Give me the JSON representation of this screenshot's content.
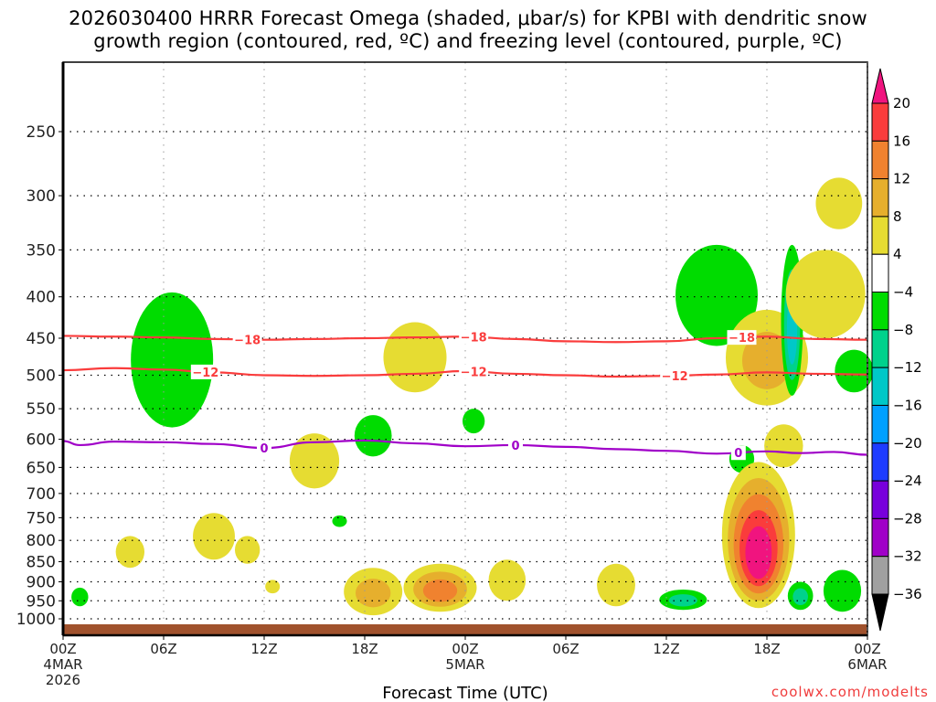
{
  "title": {
    "line1": "2026030400 HRRR Forecast Omega (shaded, μbar/s) for KPBI with dendritic snow",
    "line2": "growth region (contoured, red, ºC) and freezing level (contoured, purple, ºC)"
  },
  "credit": "coolwx.com/modelts",
  "chart_data": {
    "type": "heatmap",
    "title": "2026030400 HRRR Forecast Omega (shaded, μbar/s) for KPBI with dendritic snow growth region (contoured, red, ºC) and freezing level (contoured, purple, ºC)",
    "xlabel": "Forecast Time (UTC)",
    "ylabel": "",
    "x_unit": "forecast hour",
    "xlim": [
      0,
      48
    ],
    "ylim": [
      1000,
      200
    ],
    "y_scale": "log-pressure (hPa)",
    "grid": true,
    "x_ticks": [
      {
        "hour": 0,
        "label": [
          "00Z",
          "4MAR",
          "2026"
        ]
      },
      {
        "hour": 6,
        "label": [
          "06Z"
        ]
      },
      {
        "hour": 12,
        "label": [
          "12Z"
        ]
      },
      {
        "hour": 18,
        "label": [
          "18Z"
        ]
      },
      {
        "hour": 24,
        "label": [
          "00Z",
          "5MAR"
        ]
      },
      {
        "hour": 30,
        "label": [
          "06Z"
        ]
      },
      {
        "hour": 36,
        "label": [
          "12Z"
        ]
      },
      {
        "hour": 42,
        "label": [
          "18Z"
        ]
      },
      {
        "hour": 48,
        "label": [
          "00Z",
          "6MAR"
        ]
      }
    ],
    "y_ticks": [
      250,
      300,
      350,
      400,
      450,
      500,
      550,
      600,
      650,
      700,
      750,
      800,
      850,
      900,
      950,
      1000
    ],
    "colorbar": {
      "label": "Omega (μbar/s)",
      "ticks": [
        20,
        16,
        12,
        8,
        4,
        -4,
        -8,
        -12,
        -16,
        -20,
        -24,
        -28,
        -32,
        -36
      ],
      "bins": [
        {
          "range": ">20",
          "color": "#f0147f"
        },
        {
          "range": "16-20",
          "color": "#fa3c3c"
        },
        {
          "range": "12-16",
          "color": "#f0822f"
        },
        {
          "range": "8-12",
          "color": "#e6af2d"
        },
        {
          "range": "4-8",
          "color": "#e6dc32"
        },
        {
          "range": "-4-4",
          "color": "#ffffff"
        },
        {
          "range": "-8--4",
          "color": "#00dc00"
        },
        {
          "range": "-12--8",
          "color": "#00d28c"
        },
        {
          "range": "-16--12",
          "color": "#00c8c8"
        },
        {
          "range": "-20--16",
          "color": "#00a0ff"
        },
        {
          "range": "-24--20",
          "color": "#1e3cff"
        },
        {
          "range": "-28--24",
          "color": "#7800dc"
        },
        {
          "range": "-32--28",
          "color": "#a000c8"
        },
        {
          "range": "-36--32",
          "color": "#a0a0a0"
        },
        {
          "range": "<-36",
          "color": "#000000"
        }
      ]
    },
    "contours": [
      {
        "name": "-18C isotherm",
        "color": "#fa3c3c",
        "label": "-18",
        "hours": [
          0,
          3,
          6,
          9,
          12,
          15,
          18,
          21,
          24,
          27,
          30,
          33,
          36,
          39,
          42,
          45,
          48
        ],
        "pressure": [
          447,
          448,
          449,
          451,
          452,
          451,
          450,
          449,
          448,
          451,
          454,
          455,
          454,
          450,
          448,
          451,
          452
        ],
        "label_hours": [
          11,
          24.5,
          40.5
        ]
      },
      {
        "name": "-12C isotherm",
        "color": "#fa3c3c",
        "label": "-12",
        "hours": [
          0,
          3,
          6,
          9,
          12,
          15,
          18,
          21,
          24,
          27,
          30,
          33,
          36,
          39,
          42,
          45,
          48
        ],
        "pressure": [
          493,
          490,
          492,
          496,
          500,
          501,
          500,
          498,
          494,
          498,
          500,
          502,
          501,
          499,
          496,
          498,
          499
        ],
        "label_hours": [
          8.5,
          24.5,
          36.5
        ]
      },
      {
        "name": "0C freezing level",
        "color": "#a000c8",
        "label": "0",
        "hours": [
          0,
          1,
          3,
          6,
          9,
          12,
          15,
          18,
          21,
          24,
          27,
          30,
          33,
          36,
          39,
          42,
          44,
          46,
          48
        ],
        "pressure": [
          603,
          610,
          604,
          605,
          608,
          615,
          605,
          602,
          607,
          612,
          610,
          613,
          617,
          620,
          625,
          621,
          624,
          622,
          627
        ],
        "label_hours": [
          12,
          27,
          40.3
        ]
      }
    ],
    "shaded_features": [
      {
        "hour": 1,
        "p_top": 915,
        "p_bottom": 965,
        "omega": -6,
        "desc": "green cell near surface"
      },
      {
        "hour": 4,
        "p_top": 790,
        "p_bottom": 865,
        "omega": 6
      },
      {
        "hour": 6.5,
        "p_top": 395,
        "p_bottom": 580,
        "omega": -6,
        "desc": "tall narrow green column"
      },
      {
        "hour": 9,
        "p_top": 740,
        "p_bottom": 845,
        "omega": 6
      },
      {
        "hour": 11,
        "p_top": 790,
        "p_bottom": 855,
        "omega": 5
      },
      {
        "hour": 12.5,
        "p_top": 895,
        "p_bottom": 930,
        "omega": 6
      },
      {
        "hour": 15,
        "p_top": 590,
        "p_bottom": 690,
        "omega": 6
      },
      {
        "hour": 16.5,
        "p_top": 745,
        "p_bottom": 770,
        "omega": -5
      },
      {
        "hour": 18.5,
        "p_top": 560,
        "p_bottom": 630,
        "omega": -6
      },
      {
        "hour": 18.5,
        "p_top": 865,
        "p_bottom": 990,
        "omega": 10,
        "desc": "broad low-level ascent, max 8-12"
      },
      {
        "hour": 22.5,
        "p_top": 855,
        "p_bottom": 980,
        "omega": 14,
        "desc": "core 12-16 near 900 hPa"
      },
      {
        "hour": 21,
        "p_top": 430,
        "p_bottom": 525,
        "omega": 6
      },
      {
        "hour": 24.5,
        "p_top": 550,
        "p_bottom": 590,
        "omega": -6
      },
      {
        "hour": 26.5,
        "p_top": 845,
        "p_bottom": 950,
        "omega": 6
      },
      {
        "hour": 33,
        "p_top": 855,
        "p_bottom": 965,
        "omega": 6
      },
      {
        "hour": 37,
        "p_top": 920,
        "p_bottom": 975,
        "omega": -9,
        "desc": "green cell, teal core"
      },
      {
        "hour": 39,
        "p_top": 345,
        "p_bottom": 460,
        "omega": -6
      },
      {
        "hour": 40.5,
        "p_top": 610,
        "p_bottom": 660,
        "omega": -6
      },
      {
        "hour": 41.5,
        "p_top": 640,
        "p_bottom": 970,
        "omega": 24,
        "desc": "strong ascent max >20 near 750-850 hPa"
      },
      {
        "hour": 42,
        "p_top": 415,
        "p_bottom": 545,
        "omega": 9
      },
      {
        "hour": 43.5,
        "p_top": 345,
        "p_bottom": 530,
        "omega": -14,
        "desc": "green with teal/cyan core"
      },
      {
        "hour": 43,
        "p_top": 575,
        "p_bottom": 650,
        "omega": 6
      },
      {
        "hour": 44,
        "p_top": 900,
        "p_bottom": 975,
        "omega": -12
      },
      {
        "hour": 45.5,
        "p_top": 350,
        "p_bottom": 450,
        "omega": 7
      },
      {
        "hour": 46.5,
        "p_top": 870,
        "p_bottom": 980,
        "omega": -7
      },
      {
        "hour": 46.3,
        "p_top": 285,
        "p_bottom": 330,
        "omega": 5
      },
      {
        "hour": 47.2,
        "p_top": 465,
        "p_bottom": 525,
        "omega": -5
      }
    ],
    "terrain": {
      "color": "#a0522d",
      "desc": "surface (below ~1010 hPa)"
    }
  }
}
